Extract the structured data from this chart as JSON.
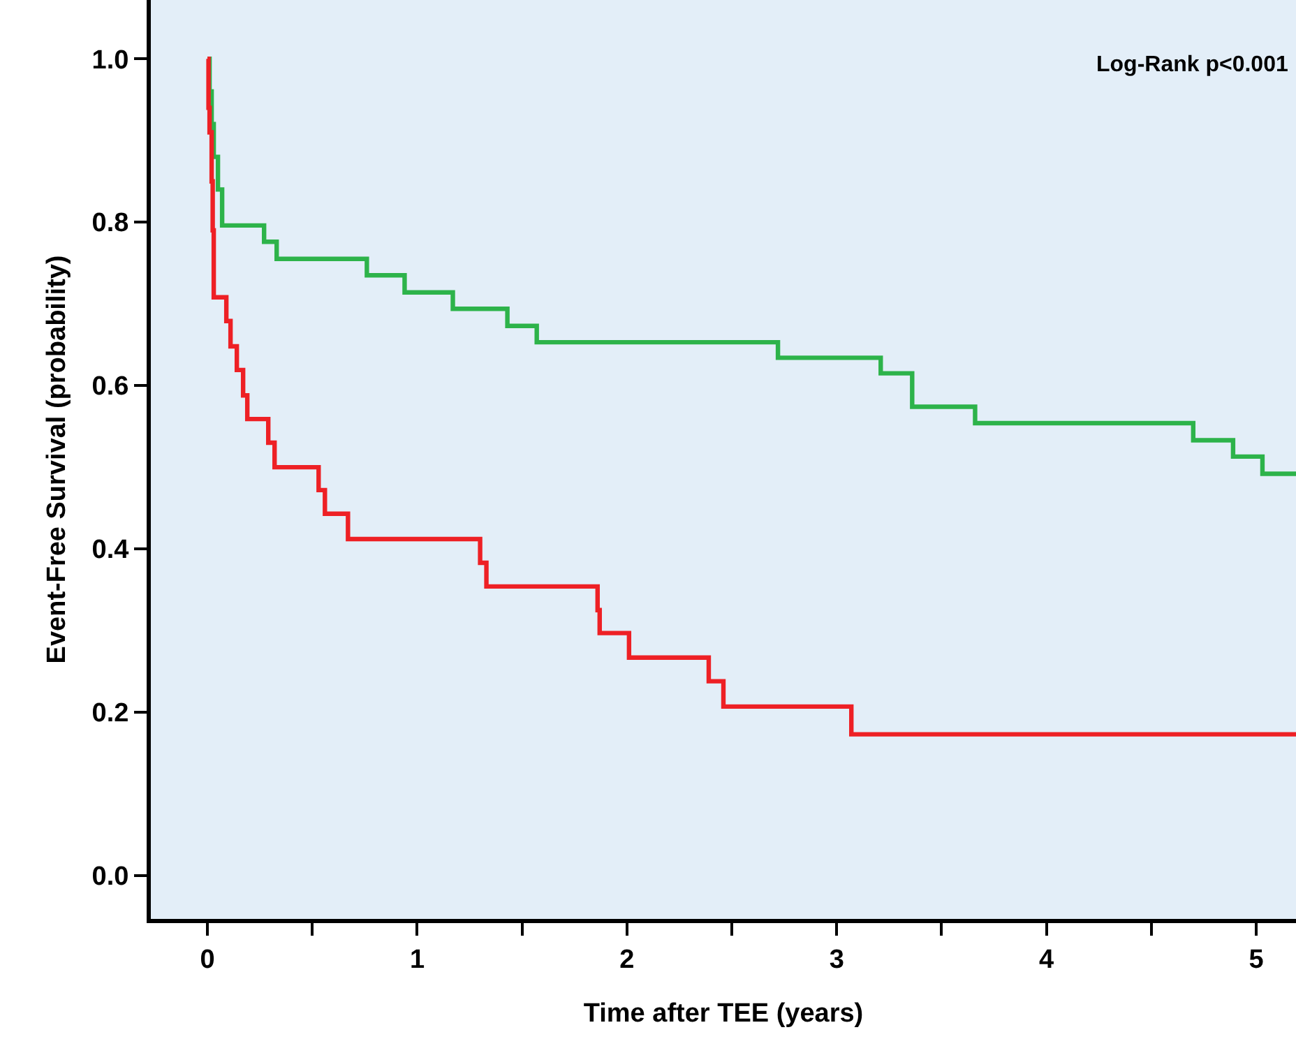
{
  "chart_data": {
    "type": "step",
    "xlabel": "Time after TEE (years)",
    "ylabel": "Event-Free Survival (probability)",
    "annotations": [
      "Log-Rank p<0.001"
    ],
    "xlim": [
      -0.27,
      5.19
    ],
    "xticks": [
      0,
      {
        "value": 0.5,
        "label": null
      },
      1,
      {
        "value": 1.5,
        "label": null
      },
      2,
      {
        "value": 2.5,
        "label": null
      },
      3,
      {
        "value": 3.5,
        "label": null
      },
      4,
      {
        "value": 4.5,
        "label": null
      },
      5
    ],
    "ylim": [
      -0.053,
      1.072
    ],
    "yticks": [
      {
        "value": 0,
        "label": "0.0"
      },
      0.2,
      0.4,
      0.6,
      0.8,
      {
        "value": 1,
        "label": "1.0"
      }
    ],
    "grid": false,
    "marker": "none",
    "line_style": "solid",
    "series": [
      {
        "color": "#2db34a",
        "x": [
          0,
          0.01,
          0.02,
          0.03,
          0.05,
          0.07,
          0.27,
          0.33,
          0.76,
          0.94,
          1.17,
          1.43,
          1.57,
          2.72,
          3.21,
          3.36,
          3.66,
          4.7,
          4.89,
          5.03,
          5.19
        ],
        "values": [
          1.0,
          0.96,
          0.92,
          0.88,
          0.84,
          0.796,
          0.776,
          0.755,
          0.735,
          0.714,
          0.694,
          0.673,
          0.653,
          0.634,
          0.615,
          0.574,
          0.554,
          0.533,
          0.513,
          0.492,
          0.492
        ]
      },
      {
        "color": "#ee2025",
        "x": [
          0,
          0.005,
          0.01,
          0.02,
          0.025,
          0.03,
          0.09,
          0.11,
          0.14,
          0.17,
          0.19,
          0.29,
          0.32,
          0.53,
          0.56,
          0.67,
          1.3,
          1.33,
          1.86,
          1.87,
          2.01,
          2.39,
          2.46,
          3.07,
          5.19
        ],
        "values": [
          1.0,
          0.94,
          0.91,
          0.85,
          0.79,
          0.708,
          0.679,
          0.648,
          0.619,
          0.588,
          0.559,
          0.53,
          0.5,
          0.472,
          0.443,
          0.412,
          0.383,
          0.354,
          0.325,
          0.297,
          0.267,
          0.238,
          0.207,
          0.173,
          0.173
        ]
      }
    ]
  }
}
